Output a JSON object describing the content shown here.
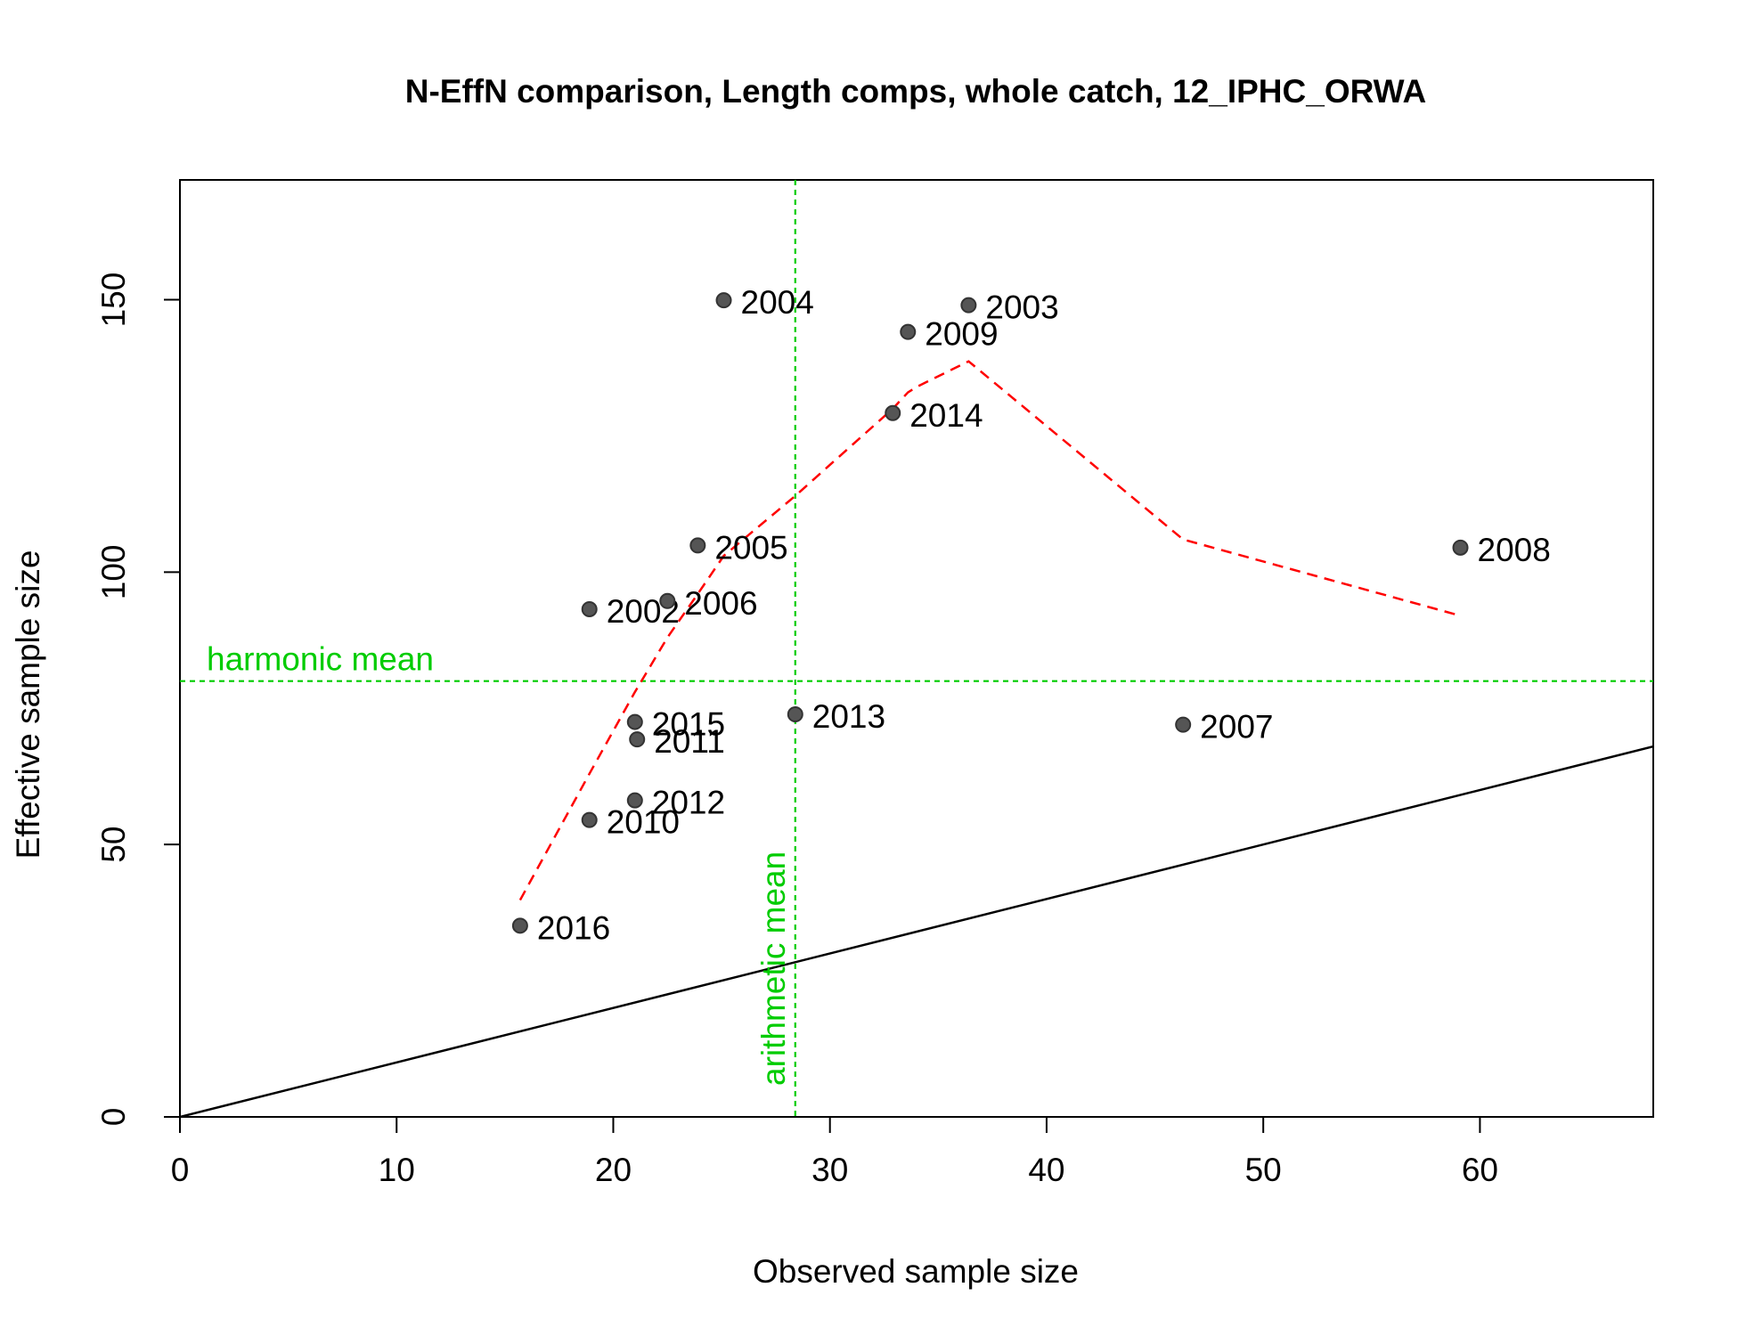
{
  "chart_data": {
    "type": "scatter",
    "title": "N-EffN comparison, Length comps, whole catch, 12_IPHC_ORWA",
    "xlabel": "Observed sample size",
    "ylabel": "Effective sample size",
    "xlim": [
      0,
      68
    ],
    "ylim": [
      0,
      172
    ],
    "xticks": [
      0,
      10,
      20,
      30,
      40,
      50,
      60
    ],
    "yticks": [
      0,
      50,
      100,
      150
    ],
    "grid": false,
    "points": [
      {
        "label": "2002",
        "x": 18.9,
        "y": 93.2
      },
      {
        "label": "2003",
        "x": 36.4,
        "y": 149.0
      },
      {
        "label": "2004",
        "x": 25.1,
        "y": 149.9
      },
      {
        "label": "2005",
        "x": 23.9,
        "y": 104.9
      },
      {
        "label": "2006",
        "x": 22.5,
        "y": 94.7
      },
      {
        "label": "2007",
        "x": 46.3,
        "y": 72.0
      },
      {
        "label": "2008",
        "x": 59.1,
        "y": 104.5
      },
      {
        "label": "2009",
        "x": 33.6,
        "y": 144.1
      },
      {
        "label": "2010",
        "x": 18.9,
        "y": 54.5
      },
      {
        "label": "2011",
        "x": 21.1,
        "y": 69.3
      },
      {
        "label": "2012",
        "x": 21.0,
        "y": 58.1
      },
      {
        "label": "2013",
        "x": 28.4,
        "y": 73.9
      },
      {
        "label": "2014",
        "x": 32.9,
        "y": 129.2
      },
      {
        "label": "2015",
        "x": 21.0,
        "y": 72.5
      },
      {
        "label": "2016",
        "x": 15.7,
        "y": 35.1
      }
    ],
    "smoother": {
      "x": [
        15.7,
        18.9,
        21.0,
        22.5,
        23.9,
        25.1,
        28.4,
        32.9,
        33.6,
        34.0,
        36.4,
        46.3,
        59.1
      ],
      "y": [
        39.8,
        63.0,
        78.0,
        88.0,
        96.0,
        103.0,
        114.0,
        130.0,
        133.0,
        134.0,
        138.7,
        106.0,
        92.0
      ],
      "color": "#ff0000",
      "style": "dashed"
    },
    "one_to_one_line": {
      "from": [
        0,
        0
      ],
      "to": [
        68,
        68
      ],
      "color": "#000000"
    },
    "harmonic_mean": {
      "value": 80.0,
      "label": "harmonic mean",
      "color": "#00cc00"
    },
    "arithmetic_mean": {
      "value": 28.4,
      "label": "arithmetic mean",
      "color": "#00cc00"
    },
    "point_color": "#555555"
  }
}
